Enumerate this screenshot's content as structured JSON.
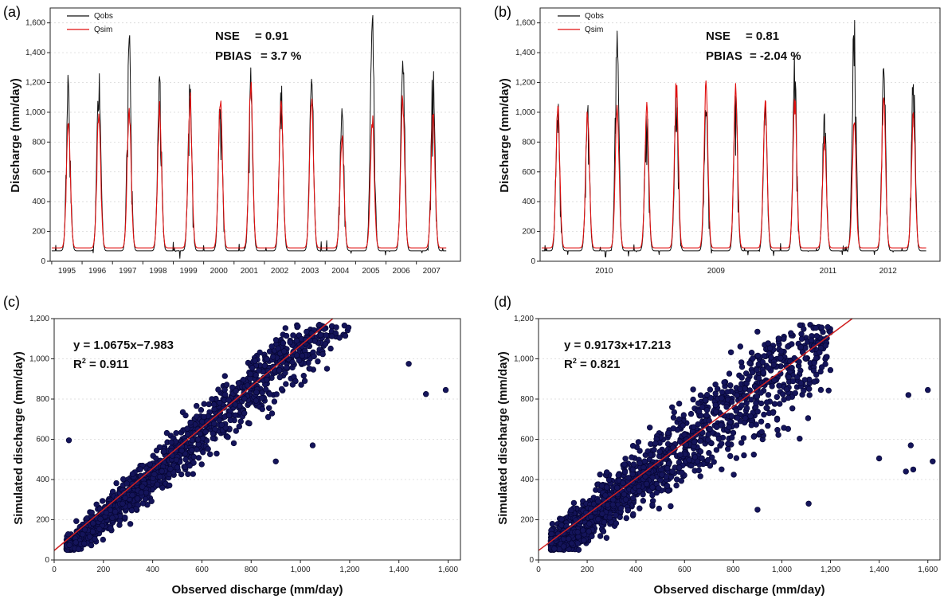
{
  "chart_data": [
    {
      "panel": "(a)",
      "type": "line",
      "ylabel": "Discharge (mm/day)",
      "ylim": [
        0,
        1700
      ],
      "yticks": [
        "0",
        "200",
        "400",
        "600",
        "800",
        "1,000",
        "1,200",
        "1,400",
        "1,600"
      ],
      "x_tick_labels": [
        "1995",
        "1996",
        "1997",
        "1998",
        "1999",
        "2000",
        "2001",
        "2002",
        "2003",
        "2004",
        "2005",
        "2006",
        "2007"
      ],
      "legend": [
        "Qobs",
        "Qsim"
      ],
      "annotations": {
        "nse_label": "NSE",
        "nse_value": "= 0.91",
        "pbias_label": "PBIAS",
        "pbias_value": "= 3.7 %"
      },
      "series": [
        {
          "name": "Qobs",
          "color": "#111111",
          "peaks": [
            1190,
            1220,
            1450,
            1220,
            1110,
            1060,
            1150,
            1110,
            1270,
            1000,
            1600,
            1320,
            1220
          ]
        },
        {
          "name": "Qsim",
          "color": "#e01010",
          "peaks": [
            900,
            960,
            1020,
            990,
            1050,
            1080,
            1160,
            1050,
            1050,
            780,
            900,
            1070,
            950
          ]
        }
      ],
      "grid": true
    },
    {
      "panel": "(b)",
      "type": "line",
      "ylabel": "Discharge (mm/day)",
      "ylim": [
        0,
        1700
      ],
      "yticks": [
        "0",
        "200",
        "400",
        "600",
        "800",
        "1,000",
        "1,200",
        "1,400",
        "1,600"
      ],
      "x_tick_labels": [
        "2010",
        "2009",
        "2011",
        "2012"
      ],
      "legend": [
        "Qobs",
        "Qsim"
      ],
      "annotations": {
        "nse_label": "NSE",
        "nse_value": "= 0.81",
        "pbias_label": "PBIAS",
        "pbias_value": "= -2.04 %"
      },
      "series": [
        {
          "name": "Qobs",
          "color": "#111111",
          "peaks": [
            1010,
            1030,
            1500,
            1010,
            1100,
            1060,
            1110,
            1050,
            1270,
            1000,
            1600,
            1320,
            1220
          ]
        },
        {
          "name": "Qsim",
          "color": "#e01010",
          "peaks": [
            1030,
            960,
            1020,
            990,
            1160,
            1160,
            1110,
            1050,
            1050,
            780,
            900,
            1070,
            950
          ]
        }
      ],
      "grid": true
    },
    {
      "panel": "(c)",
      "type": "scatter",
      "xlabel": "Observed discharge (mm/day)",
      "ylabel": "Simulated discharge (mm/day)",
      "xlim": [
        0,
        1650
      ],
      "ylim": [
        0,
        1200
      ],
      "xticks": [
        "0",
        "200",
        "400",
        "600",
        "800",
        "1,000",
        "1,200",
        "1,400",
        "1,600"
      ],
      "yticks": [
        "0",
        "200",
        "400",
        "600",
        "800",
        "1,000",
        "1,200"
      ],
      "equation": "y = 1.0675x−7.983",
      "r2_prefix": "R",
      "r2_sup": "2",
      "r2_value": " = 0.911",
      "fit": {
        "slope": 1.0675,
        "intercept": -7.983,
        "r2": 0.911
      },
      "point_color": "#14145a",
      "line_color": "#d02020",
      "outliers": [
        [
          60,
          595
        ],
        [
          1510,
          825
        ],
        [
          1590,
          845
        ],
        [
          1440,
          975
        ],
        [
          1050,
          570
        ],
        [
          900,
          490
        ]
      ],
      "grid": true
    },
    {
      "panel": "(d)",
      "type": "scatter",
      "xlabel": "Observed discharge (mm/day)",
      "ylabel": "Simulated discharge (mm/day)",
      "xlim": [
        0,
        1650
      ],
      "ylim": [
        0,
        1200
      ],
      "xticks": [
        "0",
        "200",
        "400",
        "600",
        "800",
        "1,000",
        "1,200",
        "1,400",
        "1,600"
      ],
      "yticks": [
        "0",
        "200",
        "400",
        "600",
        "800",
        "1,000",
        "1,200"
      ],
      "equation": "y = 0.9173x+17.213",
      "r2_prefix": "R",
      "r2_sup": "2",
      "r2_value": " = 0.821",
      "fit": {
        "slope": 0.9173,
        "intercept": 17.213,
        "r2": 0.821
      },
      "point_color": "#14145a",
      "line_color": "#d02020",
      "outliers": [
        [
          1520,
          820
        ],
        [
          1530,
          570
        ],
        [
          1620,
          490
        ],
        [
          1510,
          440
        ],
        [
          1540,
          450
        ],
        [
          1600,
          845
        ],
        [
          1400,
          505
        ],
        [
          900,
          250
        ],
        [
          1110,
          280
        ]
      ],
      "grid": true
    }
  ]
}
